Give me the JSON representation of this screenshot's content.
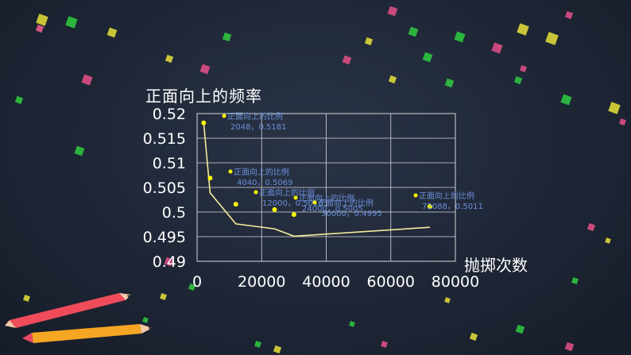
{
  "chart_data": {
    "type": "scatter",
    "ylabel": "正面向上的频率",
    "xlabel": "抛掷次数",
    "xlim": [
      0,
      80000
    ],
    "ylim": [
      0.49,
      0.52
    ],
    "x_ticks": [
      "0",
      "20000",
      "40000",
      "60000",
      "80000"
    ],
    "y_ticks": [
      "0.52",
      "0.515",
      "0.51",
      "0.505",
      "0.5",
      "0.495",
      "0.49"
    ],
    "grid": true,
    "series": [
      {
        "type": "scatter",
        "points": [
          {
            "x": 2048,
            "y": 0.5181,
            "label": [
              "正面向上的比例",
              "2048，0.5181"
            ]
          },
          {
            "x": 4040,
            "y": 0.5069,
            "label": [
              "正面向上的比例",
              "4040，0.5069"
            ]
          },
          {
            "x": 12000,
            "y": 0.5016,
            "label": [
              "正面向上的比例",
              "12000，0.5016"
            ]
          },
          {
            "x": 24000,
            "y": 0.5005,
            "label": [
              "正面向上的比例",
              "24000，0.5005"
            ]
          },
          {
            "x": 30000,
            "y": 0.4995,
            "label": [
              "正面向上的比例",
              "30000，0.4995"
            ]
          },
          {
            "x": 72088,
            "y": 0.5011,
            "label": [
              "正面向上的比例",
              "72088，0.5011"
            ]
          }
        ]
      },
      {
        "type": "line",
        "points": [
          {
            "x": 2048,
            "y": 0.5181
          },
          {
            "x": 4040,
            "y": 0.5039
          },
          {
            "x": 12000,
            "y": 0.4976
          },
          {
            "x": 24000,
            "y": 0.4966
          },
          {
            "x": 30000,
            "y": 0.4951
          },
          {
            "x": 72088,
            "y": 0.4969
          }
        ]
      }
    ]
  },
  "colors": {
    "point": "#ffff00",
    "line": "#f5ec9a",
    "label": "#6a8fd8",
    "axis_text": "#ffffff",
    "grid": "#d8d8d8"
  }
}
